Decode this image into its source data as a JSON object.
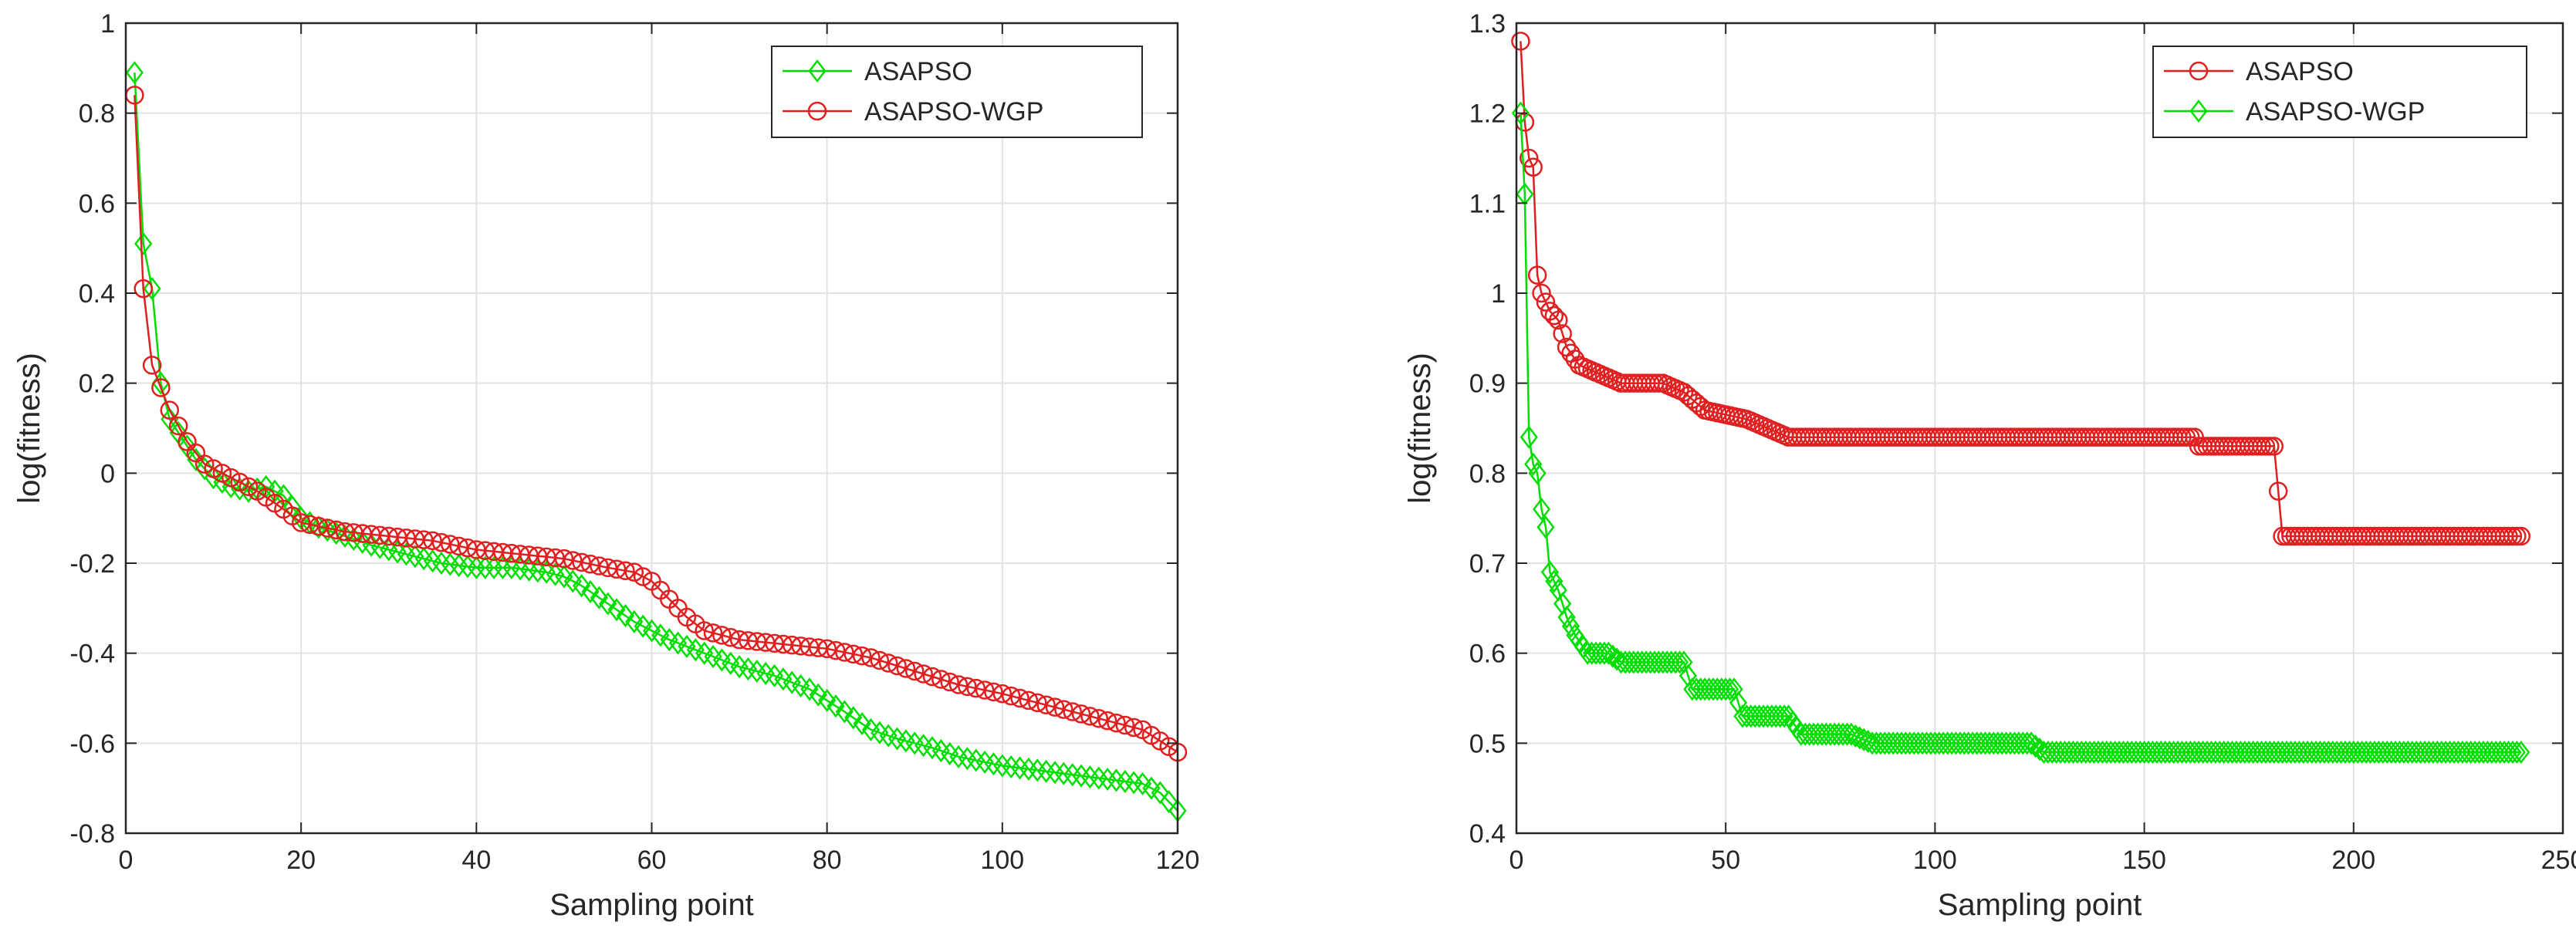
{
  "chart_data": [
    {
      "type": "line",
      "xlabel": "Sampling point",
      "ylabel": "log(fitness)",
      "xlim": [
        0,
        120
      ],
      "ylim": [
        -0.8,
        1
      ],
      "xticks": [
        0,
        20,
        40,
        60,
        80,
        100,
        120
      ],
      "yticks": [
        -0.8,
        -0.6,
        -0.4,
        -0.2,
        0,
        0.2,
        0.4,
        0.6,
        0.8,
        1
      ],
      "xtick_labels": [
        "0",
        "20",
        "40",
        "60",
        "80",
        "100",
        "120"
      ],
      "ytick_labels": [
        "-0.8",
        "-0.6",
        "-0.4",
        "-0.2",
        "0",
        "0.2",
        "0.4",
        "0.6",
        "0.8",
        "1"
      ],
      "grid": true,
      "legend_position": "top-right",
      "series": [
        {
          "name": "ASAPSO",
          "color": "#00dd00",
          "marker": "diamond",
          "anchors": [
            [
              1,
              0.89
            ],
            [
              2,
              0.51
            ],
            [
              3,
              0.41
            ],
            [
              4,
              0.2
            ],
            [
              5,
              0.12
            ],
            [
              6,
              0.09
            ],
            [
              8,
              0.03
            ],
            [
              10,
              -0.01
            ],
            [
              12,
              -0.03
            ],
            [
              14,
              -0.04
            ],
            [
              16,
              -0.03
            ],
            [
              18,
              -0.05
            ],
            [
              20,
              -0.1
            ],
            [
              22,
              -0.12
            ],
            [
              25,
              -0.14
            ],
            [
              28,
              -0.16
            ],
            [
              32,
              -0.18
            ],
            [
              36,
              -0.2
            ],
            [
              40,
              -0.21
            ],
            [
              44,
              -0.21
            ],
            [
              48,
              -0.22
            ],
            [
              50,
              -0.23
            ],
            [
              52,
              -0.25
            ],
            [
              55,
              -0.29
            ],
            [
              58,
              -0.33
            ],
            [
              62,
              -0.37
            ],
            [
              66,
              -0.4
            ],
            [
              70,
              -0.43
            ],
            [
              74,
              -0.45
            ],
            [
              78,
              -0.48
            ],
            [
              82,
              -0.53
            ],
            [
              85,
              -0.57
            ],
            [
              88,
              -0.59
            ],
            [
              92,
              -0.61
            ],
            [
              95,
              -0.63
            ],
            [
              100,
              -0.65
            ],
            [
              104,
              -0.66
            ],
            [
              108,
              -0.67
            ],
            [
              112,
              -0.68
            ],
            [
              116,
              -0.69
            ],
            [
              118,
              -0.71
            ],
            [
              120,
              -0.75
            ]
          ]
        },
        {
          "name": "ASAPSO-WGP",
          "color": "#e02020",
          "marker": "circle",
          "anchors": [
            [
              1,
              0.84
            ],
            [
              2,
              0.41
            ],
            [
              3,
              0.24
            ],
            [
              4,
              0.19
            ],
            [
              5,
              0.14
            ],
            [
              7,
              0.07
            ],
            [
              9,
              0.02
            ],
            [
              12,
              -0.01
            ],
            [
              15,
              -0.04
            ],
            [
              18,
              -0.08
            ],
            [
              20,
              -0.11
            ],
            [
              25,
              -0.13
            ],
            [
              30,
              -0.14
            ],
            [
              35,
              -0.15
            ],
            [
              40,
              -0.17
            ],
            [
              45,
              -0.18
            ],
            [
              50,
              -0.19
            ],
            [
              55,
              -0.21
            ],
            [
              58,
              -0.22
            ],
            [
              60,
              -0.24
            ],
            [
              62,
              -0.28
            ],
            [
              64,
              -0.32
            ],
            [
              66,
              -0.35
            ],
            [
              70,
              -0.37
            ],
            [
              75,
              -0.38
            ],
            [
              80,
              -0.39
            ],
            [
              85,
              -0.41
            ],
            [
              90,
              -0.44
            ],
            [
              95,
              -0.47
            ],
            [
              100,
              -0.49
            ],
            [
              104,
              -0.51
            ],
            [
              108,
              -0.53
            ],
            [
              112,
              -0.55
            ],
            [
              116,
              -0.57
            ],
            [
              120,
              -0.62
            ]
          ]
        }
      ]
    },
    {
      "type": "line",
      "xlabel": "Sampling point",
      "ylabel": "log(fitness)",
      "xlim": [
        0,
        250
      ],
      "ylim": [
        0.4,
        1.3
      ],
      "xticks": [
        0,
        50,
        100,
        150,
        200,
        250
      ],
      "yticks": [
        0.4,
        0.5,
        0.6,
        0.7,
        0.8,
        0.9,
        1,
        1.1,
        1.2,
        1.3
      ],
      "xtick_labels": [
        "0",
        "50",
        "100",
        "150",
        "200",
        "250"
      ],
      "ytick_labels": [
        "0.4",
        "0.5",
        "0.6",
        "0.7",
        "0.8",
        "0.9",
        "1",
        "1.1",
        "1.2",
        "1.3"
      ],
      "grid": true,
      "legend_position": "top-right",
      "series": [
        {
          "name": "ASAPSO",
          "color": "#e02020",
          "marker": "circle",
          "anchors": [
            [
              1,
              1.28
            ],
            [
              2,
              1.19
            ],
            [
              3,
              1.15
            ],
            [
              4,
              1.14
            ],
            [
              5,
              1.02
            ],
            [
              6,
              1.0
            ],
            [
              8,
              0.98
            ],
            [
              10,
              0.97
            ],
            [
              12,
              0.94
            ],
            [
              15,
              0.92
            ],
            [
              20,
              0.91
            ],
            [
              25,
              0.9
            ],
            [
              30,
              0.9
            ],
            [
              35,
              0.9
            ],
            [
              40,
              0.89
            ],
            [
              45,
              0.87
            ],
            [
              55,
              0.86
            ],
            [
              60,
              0.85
            ],
            [
              65,
              0.84
            ],
            [
              100,
              0.84
            ],
            [
              162,
              0.84
            ],
            [
              163,
              0.83
            ],
            [
              181,
              0.83
            ],
            [
              183,
              0.73
            ],
            [
              240,
              0.73
            ]
          ]
        },
        {
          "name": "ASAPSO-WGP",
          "color": "#00dd00",
          "marker": "diamond",
          "anchors": [
            [
              1,
              1.2
            ],
            [
              2,
              1.11
            ],
            [
              3,
              0.84
            ],
            [
              4,
              0.81
            ],
            [
              5,
              0.8
            ],
            [
              6,
              0.76
            ],
            [
              7,
              0.74
            ],
            [
              8,
              0.69
            ],
            [
              10,
              0.67
            ],
            [
              12,
              0.64
            ],
            [
              14,
              0.62
            ],
            [
              17,
              0.6
            ],
            [
              22,
              0.6
            ],
            [
              25,
              0.59
            ],
            [
              40,
              0.59
            ],
            [
              42,
              0.56
            ],
            [
              52,
              0.56
            ],
            [
              54,
              0.53
            ],
            [
              65,
              0.53
            ],
            [
              68,
              0.51
            ],
            [
              80,
              0.51
            ],
            [
              85,
              0.5
            ],
            [
              123,
              0.5
            ],
            [
              126,
              0.49
            ],
            [
              240,
              0.49
            ]
          ]
        }
      ]
    }
  ]
}
